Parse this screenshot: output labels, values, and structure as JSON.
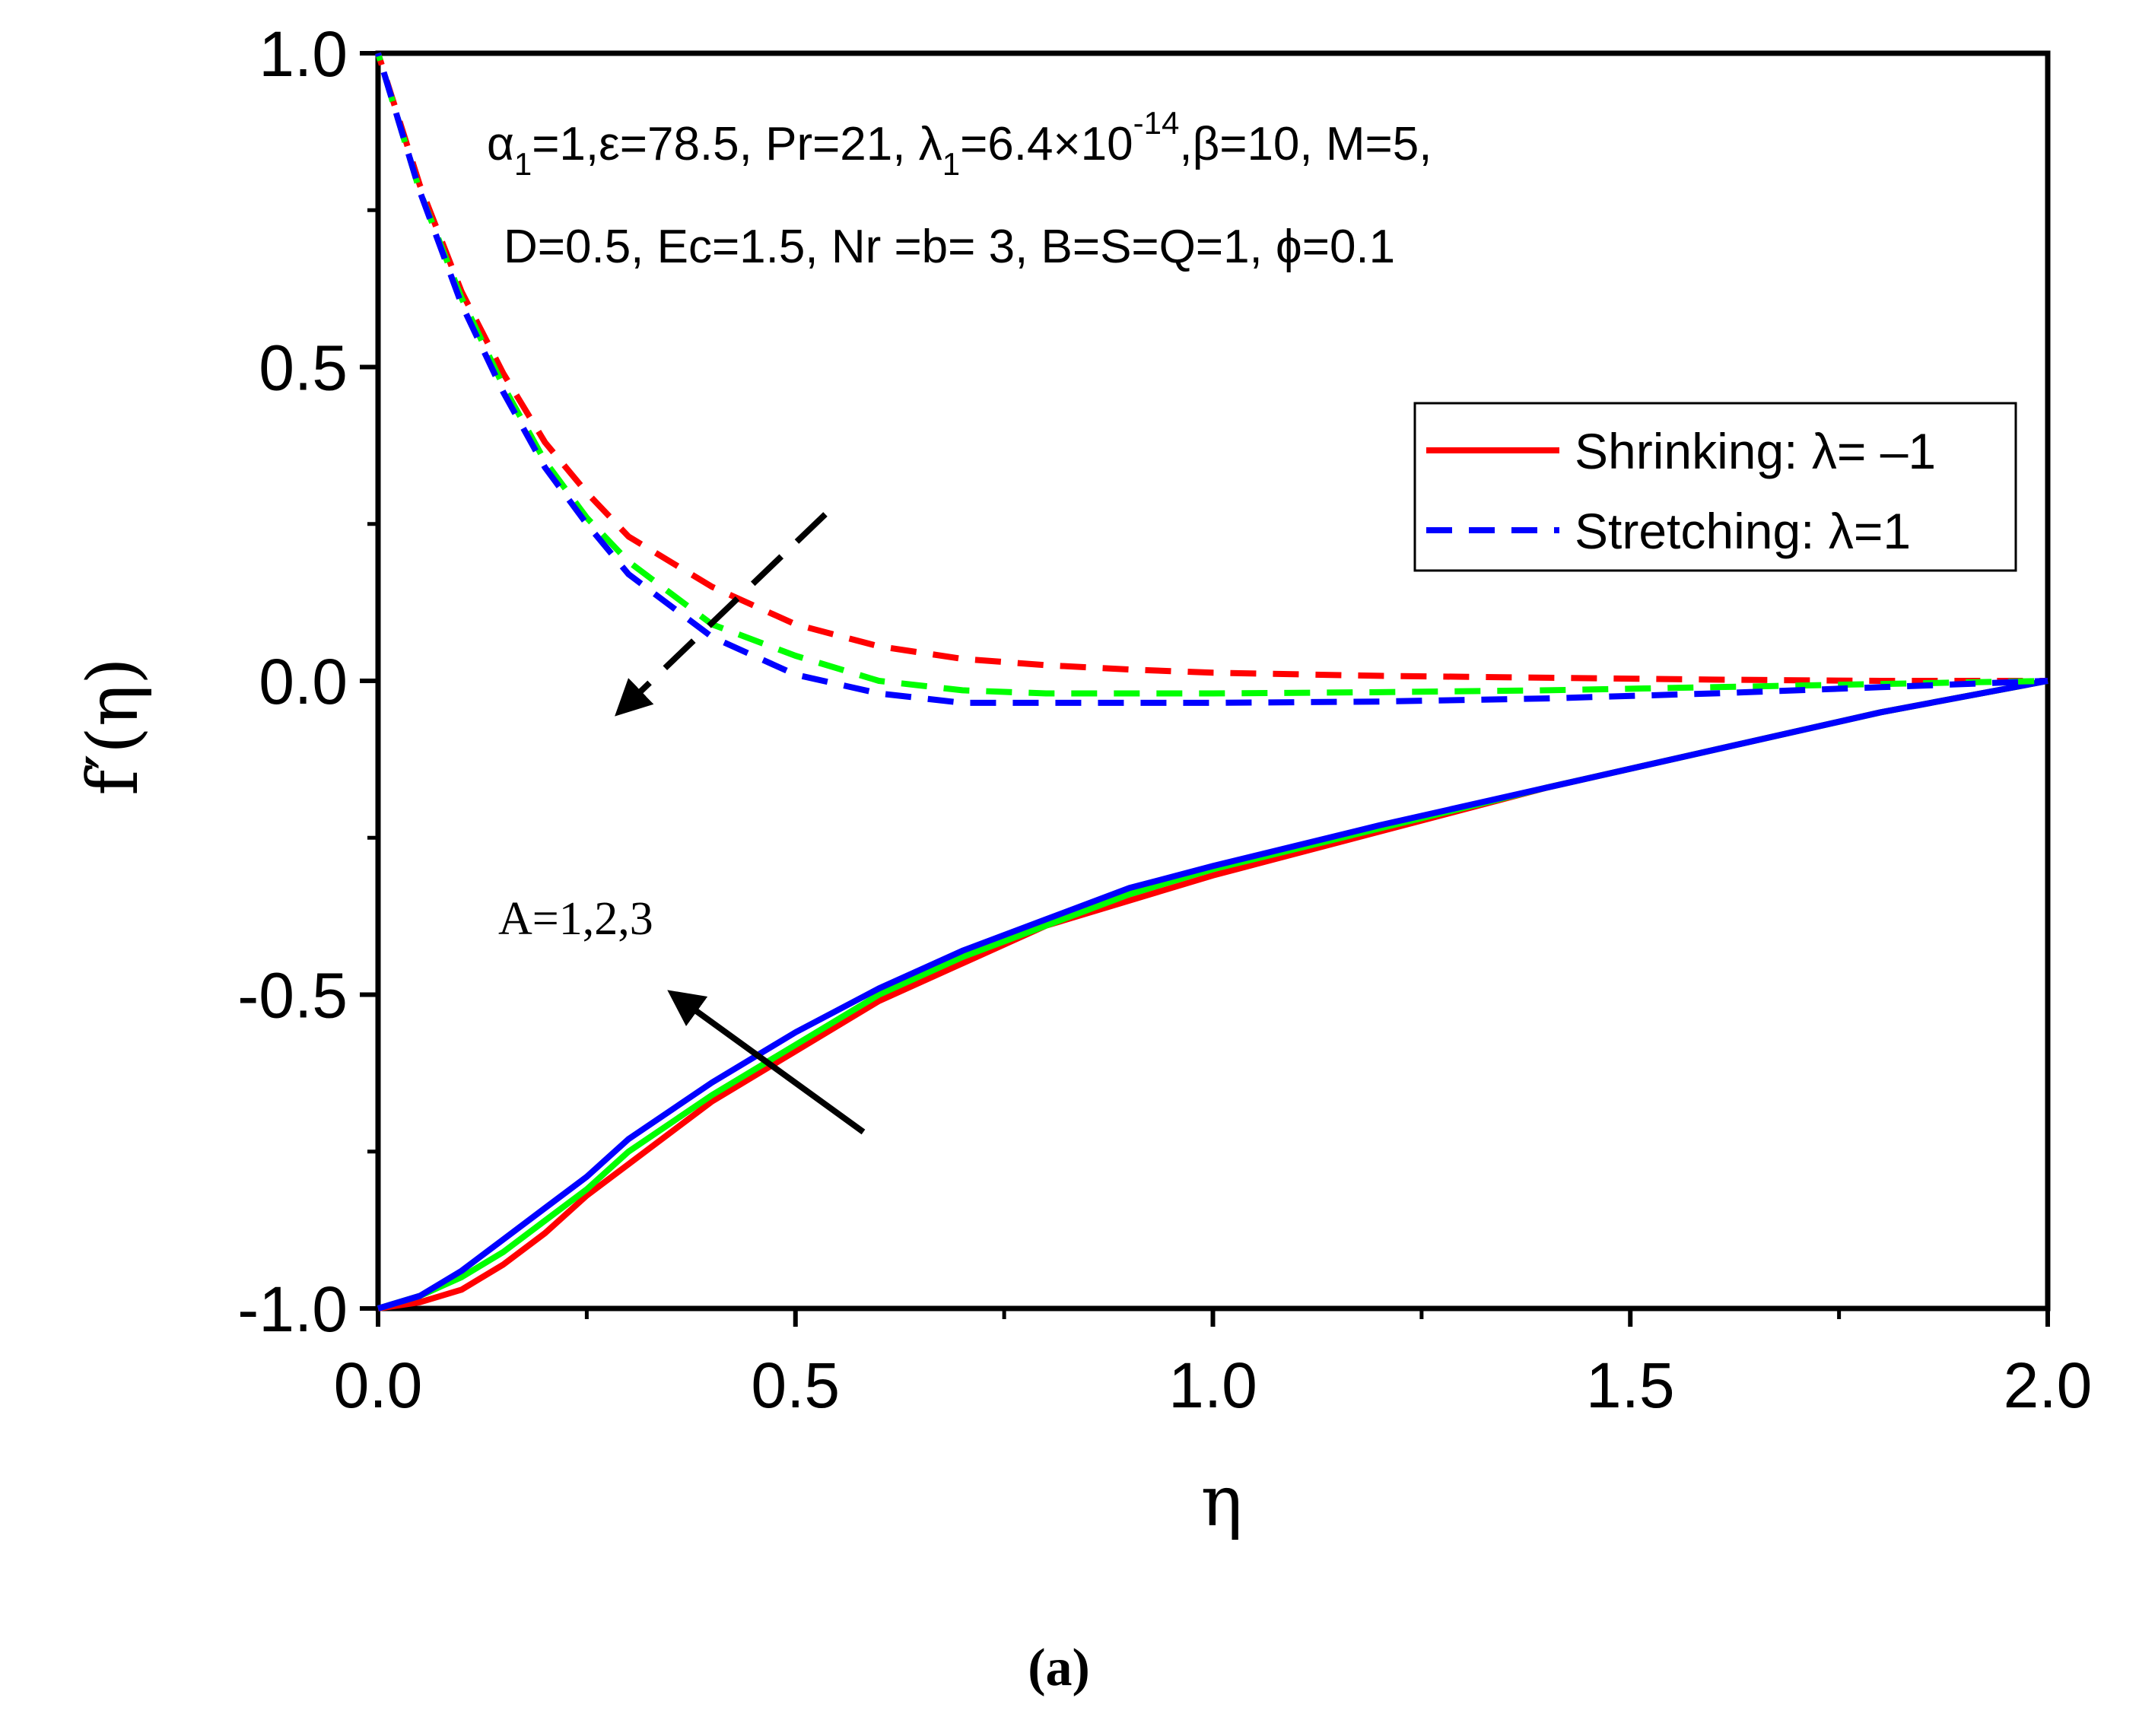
{
  "chart_data": {
    "type": "line",
    "xlabel": "η",
    "ylabel": "f′(η)",
    "xlim": [
      0,
      2
    ],
    "ylim": [
      -1.0,
      1.0
    ],
    "x_ticks": [
      "0.0",
      "0.5",
      "1.0",
      "1.5",
      "2.0"
    ],
    "y_ticks": [
      "-1.0",
      "-0.5",
      "0.0",
      "0.5",
      "1.0"
    ],
    "x_tick_values": [
      0,
      0.5,
      1.0,
      1.5,
      2.0
    ],
    "y_tick_values": [
      -1.0,
      -0.5,
      0.0,
      0.5,
      1.0
    ],
    "x": [
      0,
      0.05,
      0.1,
      0.15,
      0.2,
      0.25,
      0.3,
      0.4,
      0.5,
      0.6,
      0.7,
      0.8,
      0.9,
      1.0,
      1.2,
      1.4,
      1.6,
      1.8,
      2.0
    ],
    "series": [
      {
        "name": "Shrinking, A=1",
        "case": "shrinking",
        "A": 1,
        "color": "#ff0000",
        "dash": "solid",
        "values": [
          -1.0,
          -0.99,
          -0.97,
          -0.93,
          -0.88,
          -0.82,
          -0.77,
          -0.67,
          -0.59,
          -0.51,
          -0.45,
          -0.39,
          -0.35,
          -0.31,
          -0.24,
          -0.17,
          -0.11,
          -0.05,
          0.0
        ]
      },
      {
        "name": "Shrinking, A=2",
        "case": "shrinking",
        "A": 2,
        "color": "#00ff00",
        "dash": "solid",
        "values": [
          -1.0,
          -0.98,
          -0.95,
          -0.91,
          -0.86,
          -0.81,
          -0.75,
          -0.66,
          -0.58,
          -0.5,
          -0.44,
          -0.39,
          -0.34,
          -0.3,
          -0.235,
          -0.17,
          -0.11,
          -0.05,
          0.0
        ]
      },
      {
        "name": "Shrinking, A=3",
        "case": "shrinking",
        "A": 3,
        "color": "#0000ff",
        "dash": "solid",
        "values": [
          -1.0,
          -0.98,
          -0.94,
          -0.89,
          -0.84,
          -0.79,
          -0.73,
          -0.64,
          -0.56,
          -0.49,
          -0.43,
          -0.38,
          -0.33,
          -0.295,
          -0.23,
          -0.17,
          -0.11,
          -0.05,
          0.0
        ]
      },
      {
        "name": "Stretching, A=1",
        "case": "stretching",
        "A": 1,
        "color": "#ff0000",
        "dash": "dashed",
        "values": [
          1.0,
          0.79,
          0.62,
          0.49,
          0.38,
          0.3,
          0.23,
          0.15,
          0.09,
          0.055,
          0.035,
          0.025,
          0.018,
          0.013,
          0.008,
          0.005,
          0.002,
          0.0,
          0.0
        ]
      },
      {
        "name": "Stretching, A=2",
        "case": "stretching",
        "A": 2,
        "color": "#00ff00",
        "dash": "dashed",
        "values": [
          1.0,
          0.78,
          0.61,
          0.47,
          0.35,
          0.26,
          0.19,
          0.09,
          0.04,
          0.0,
          -0.015,
          -0.02,
          -0.02,
          -0.02,
          -0.018,
          -0.015,
          -0.01,
          -0.005,
          0.0
        ]
      },
      {
        "name": "Stretching, A=3",
        "case": "stretching",
        "A": 3,
        "color": "#0000ff",
        "dash": "dashed",
        "values": [
          1.0,
          0.78,
          0.6,
          0.46,
          0.34,
          0.25,
          0.17,
          0.07,
          0.01,
          -0.02,
          -0.035,
          -0.035,
          -0.035,
          -0.035,
          -0.033,
          -0.028,
          -0.02,
          -0.01,
          0.0
        ]
      }
    ],
    "legend": {
      "placement": "right",
      "entries": [
        {
          "label": "Shrinking: λ= –1",
          "color": "#ff0000",
          "dash": "solid"
        },
        {
          "label": "Stretching: λ=1",
          "color": "#0000ff",
          "dash": "dashed"
        }
      ]
    },
    "annotations": {
      "params_line1": {
        "alpha": "α",
        "sub1": "1",
        "mid": "=1,ε=78.5, Pr=21, λ",
        "sub2": "1",
        "mid2": "=6.4×10",
        "sup": "-14",
        "end": ",β=10, M=5,"
      },
      "params_line2": "D=0.5, Ec=1.5, Nr =b= 3, B=S=Q=1, ϕ=0.1",
      "series_label": "A=1,2,3"
    },
    "caption": "(a)"
  }
}
